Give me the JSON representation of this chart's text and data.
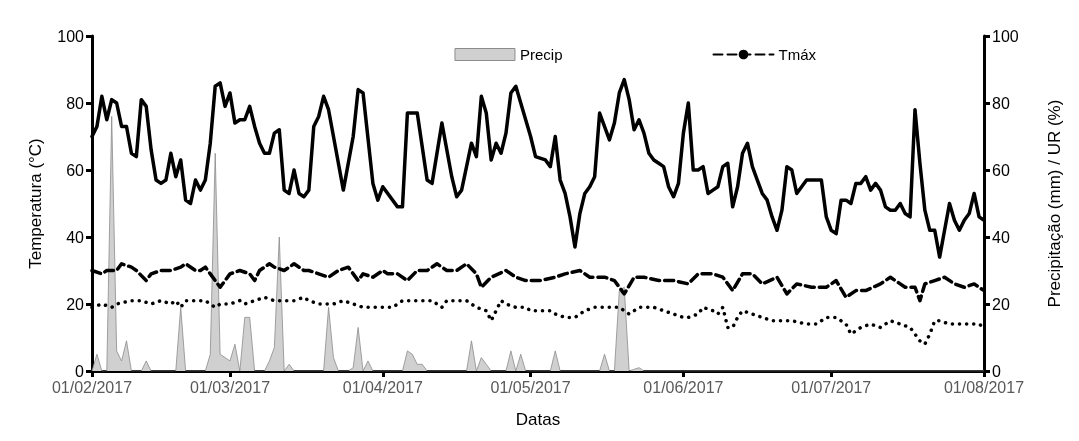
{
  "chart_data": {
    "type": "line",
    "xlabel": "Datas",
    "ylabel": "Temperatura (°C)",
    "y2label": "Precipitação (mm) / UR (%)",
    "xlim": [
      "2017-02-01",
      "2017-08-01"
    ],
    "xticks": [
      {
        "value": "2017-02-01",
        "label": "01/02/2017"
      },
      {
        "value": "2017-03-01",
        "label": "01/03/2017"
      },
      {
        "value": "2017-04-01",
        "label": "01/04/2017"
      },
      {
        "value": "2017-05-01",
        "label": "01/05/2017"
      },
      {
        "value": "2017-06-01",
        "label": "01/06/2017"
      },
      {
        "value": "2017-07-01",
        "label": "01/07/2017"
      },
      {
        "value": "2017-08-01",
        "label": "01/08/2017"
      }
    ],
    "ylim": [
      0,
      100
    ],
    "yticks": [
      0,
      20,
      40,
      60,
      80,
      100
    ],
    "y2lim": [
      0,
      100
    ],
    "y2ticks": [
      0,
      20,
      40,
      60,
      80,
      100
    ],
    "grid": false,
    "legend": "top right",
    "marker": "none",
    "series": [
      {
        "name": "Precip",
        "type": "area",
        "axis": "y2",
        "color": "#d0d0d0",
        "x": [
          "2017-02-01",
          "2017-02-02",
          "2017-02-03",
          "2017-02-04",
          "2017-02-05",
          "2017-02-06",
          "2017-02-07",
          "2017-02-08",
          "2017-02-09",
          "2017-02-11",
          "2017-02-12",
          "2017-02-13",
          "2017-02-18",
          "2017-02-19",
          "2017-02-20",
          "2017-02-24",
          "2017-02-25",
          "2017-02-26",
          "2017-02-27",
          "2017-02-28",
          "2017-03-01",
          "2017-03-02",
          "2017-03-03",
          "2017-03-04",
          "2017-03-05",
          "2017-03-06",
          "2017-03-08",
          "2017-03-09",
          "2017-03-10",
          "2017-03-11",
          "2017-03-12",
          "2017-03-13",
          "2017-03-14",
          "2017-03-20",
          "2017-03-21",
          "2017-03-22",
          "2017-03-23",
          "2017-03-25",
          "2017-03-26",
          "2017-03-27",
          "2017-03-28",
          "2017-03-29",
          "2017-03-30",
          "2017-04-05",
          "2017-04-06",
          "2017-04-07",
          "2017-04-08",
          "2017-04-09",
          "2017-04-10",
          "2017-04-18",
          "2017-04-19",
          "2017-04-20",
          "2017-04-21",
          "2017-04-22",
          "2017-04-23",
          "2017-04-26",
          "2017-04-27",
          "2017-04-28",
          "2017-04-29",
          "2017-04-30",
          "2017-05-05",
          "2017-05-06",
          "2017-05-07",
          "2017-05-15",
          "2017-05-16",
          "2017-05-17",
          "2017-05-18",
          "2017-05-19",
          "2017-05-20",
          "2017-05-21",
          "2017-05-23",
          "2017-05-24",
          "2017-08-01"
        ],
        "values": [
          0,
          5,
          0,
          0,
          76,
          6,
          3,
          9,
          0,
          0,
          3,
          0,
          0,
          19,
          0,
          0,
          5,
          65,
          5,
          4,
          3,
          8,
          0,
          16,
          16,
          0,
          0,
          3,
          7,
          40,
          0,
          2,
          0,
          0,
          19,
          4,
          0,
          0,
          1,
          13,
          0,
          3,
          0,
          0,
          6,
          5,
          2,
          2,
          0,
          0,
          9,
          0,
          4,
          2,
          0,
          0,
          6,
          0,
          5,
          0,
          0,
          6,
          0,
          0,
          5,
          0,
          0,
          24,
          25,
          0,
          1,
          0,
          0
        ]
      },
      {
        "axis": "y2",
        "color": "#000000",
        "line_style": "solid",
        "x": [
          "2017-02-01",
          "2017-02-02",
          "2017-02-03",
          "2017-02-04",
          "2017-02-05",
          "2017-02-06",
          "2017-02-07",
          "2017-02-08",
          "2017-02-09",
          "2017-02-10",
          "2017-02-11",
          "2017-02-12",
          "2017-02-13",
          "2017-02-14",
          "2017-02-15",
          "2017-02-16",
          "2017-02-17",
          "2017-02-18",
          "2017-02-19",
          "2017-02-20",
          "2017-02-21",
          "2017-02-22",
          "2017-02-23",
          "2017-02-24",
          "2017-02-25",
          "2017-02-26",
          "2017-02-27",
          "2017-02-28",
          "2017-03-01",
          "2017-03-02",
          "2017-03-03",
          "2017-03-04",
          "2017-03-05",
          "2017-03-06",
          "2017-03-07",
          "2017-03-08",
          "2017-03-09",
          "2017-03-10",
          "2017-03-11",
          "2017-03-12",
          "2017-03-13",
          "2017-03-14",
          "2017-03-15",
          "2017-03-16",
          "2017-03-17",
          "2017-03-18",
          "2017-03-19",
          "2017-03-20",
          "2017-03-21",
          "2017-03-22",
          "2017-03-24",
          "2017-03-26",
          "2017-03-27",
          "2017-03-28",
          "2017-03-30",
          "2017-03-31",
          "2017-04-01",
          "2017-04-04",
          "2017-04-05",
          "2017-04-06",
          "2017-04-08",
          "2017-04-10",
          "2017-04-11",
          "2017-04-13",
          "2017-04-15",
          "2017-04-16",
          "2017-04-17",
          "2017-04-19",
          "2017-04-20",
          "2017-04-21",
          "2017-04-22",
          "2017-04-23",
          "2017-04-24",
          "2017-04-25",
          "2017-04-26",
          "2017-04-27",
          "2017-04-28",
          "2017-04-30",
          "2017-05-01",
          "2017-05-02",
          "2017-05-04",
          "2017-05-05",
          "2017-05-06",
          "2017-05-07",
          "2017-05-08",
          "2017-05-09",
          "2017-05-10",
          "2017-05-11",
          "2017-05-12",
          "2017-05-13",
          "2017-05-14",
          "2017-05-15",
          "2017-05-17",
          "2017-05-18",
          "2017-05-19",
          "2017-05-20",
          "2017-05-21",
          "2017-05-22",
          "2017-05-23",
          "2017-05-24",
          "2017-05-25",
          "2017-05-26",
          "2017-05-27",
          "2017-05-28",
          "2017-05-29",
          "2017-05-30",
          "2017-05-31",
          "2017-06-01",
          "2017-06-02",
          "2017-06-03",
          "2017-06-04",
          "2017-06-05",
          "2017-06-06",
          "2017-06-07",
          "2017-06-08",
          "2017-06-09",
          "2017-06-10",
          "2017-06-11",
          "2017-06-12",
          "2017-06-13",
          "2017-06-14",
          "2017-06-15",
          "2017-06-16",
          "2017-06-17",
          "2017-06-18",
          "2017-06-19",
          "2017-06-20",
          "2017-06-21",
          "2017-06-22",
          "2017-06-23",
          "2017-06-24",
          "2017-06-25",
          "2017-06-26",
          "2017-06-27",
          "2017-06-29",
          "2017-06-30",
          "2017-07-01",
          "2017-07-02",
          "2017-07-03",
          "2017-07-04",
          "2017-07-05",
          "2017-07-06",
          "2017-07-07",
          "2017-07-08",
          "2017-07-09",
          "2017-07-10",
          "2017-07-11",
          "2017-07-12",
          "2017-07-13",
          "2017-07-14",
          "2017-07-15",
          "2017-07-16",
          "2017-07-17",
          "2017-07-18",
          "2017-07-19",
          "2017-07-20",
          "2017-07-21",
          "2017-07-22",
          "2017-07-23",
          "2017-07-24",
          "2017-07-25",
          "2017-07-26",
          "2017-07-27",
          "2017-07-28",
          "2017-07-29",
          "2017-07-30",
          "2017-07-31",
          "2017-08-01"
        ],
        "values": [
          70,
          73,
          82,
          75,
          81,
          80,
          73,
          73,
          65,
          64,
          81,
          79,
          66,
          57,
          56,
          57,
          65,
          58,
          63,
          51,
          50,
          57,
          54,
          57,
          68,
          85,
          86,
          79,
          83,
          74,
          75,
          75,
          79,
          73,
          68,
          65,
          65,
          71,
          72,
          54,
          53,
          60,
          53,
          52,
          54,
          73,
          76,
          82,
          78,
          70,
          54,
          70,
          84,
          83,
          56,
          51,
          55,
          49,
          49,
          77,
          77,
          57,
          56,
          74,
          58,
          52,
          54,
          68,
          64,
          82,
          77,
          63,
          68,
          65,
          71,
          83,
          85,
          75,
          70,
          64,
          63,
          61,
          70,
          57,
          53,
          46,
          37,
          47,
          53,
          55,
          58,
          77,
          69,
          74,
          83,
          87,
          81,
          72,
          75,
          71,
          65,
          63,
          62,
          61,
          55,
          52,
          56,
          71,
          80,
          60,
          60,
          61,
          53,
          54,
          55,
          61,
          62,
          49,
          55,
          65,
          68,
          61,
          57,
          53,
          51,
          46,
          42,
          48,
          61,
          60,
          53,
          55,
          57,
          57,
          57,
          46,
          42,
          41,
          51,
          51,
          50,
          56,
          56,
          58,
          54,
          56,
          54,
          49,
          48,
          48,
          50,
          47,
          46,
          78,
          62,
          48,
          42,
          42,
          34,
          42,
          50,
          45,
          42,
          45,
          47,
          53,
          46,
          45
        ]
      },
      {
        "name": "Tmáx",
        "color": "#000000",
        "line_style": "dashed",
        "x": [
          "2017-02-01",
          "2017-02-03",
          "2017-02-04",
          "2017-02-06",
          "2017-02-07",
          "2017-02-09",
          "2017-02-10",
          "2017-02-12",
          "2017-02-13",
          "2017-02-15",
          "2017-02-17",
          "2017-02-19",
          "2017-02-20",
          "2017-02-22",
          "2017-02-23",
          "2017-02-24",
          "2017-02-25",
          "2017-02-27",
          "2017-02-28",
          "2017-03-01",
          "2017-03-03",
          "2017-03-05",
          "2017-03-06",
          "2017-03-07",
          "2017-03-09",
          "2017-03-10",
          "2017-03-12",
          "2017-03-14",
          "2017-03-16",
          "2017-03-17",
          "2017-03-19",
          "2017-03-21",
          "2017-03-23",
          "2017-03-25",
          "2017-03-27",
          "2017-03-28",
          "2017-03-30",
          "2017-04-01",
          "2017-04-02",
          "2017-04-04",
          "2017-04-06",
          "2017-04-08",
          "2017-04-10",
          "2017-04-12",
          "2017-04-14",
          "2017-04-16",
          "2017-04-18",
          "2017-04-20",
          "2017-04-21",
          "2017-04-23",
          "2017-04-26",
          "2017-04-28",
          "2017-04-30",
          "2017-05-03",
          "2017-05-06",
          "2017-05-08",
          "2017-05-11",
          "2017-05-13",
          "2017-05-16",
          "2017-05-18",
          "2017-05-20",
          "2017-05-22",
          "2017-05-24",
          "2017-05-27",
          "2017-05-30",
          "2017-06-02",
          "2017-06-04",
          "2017-06-07",
          "2017-06-09",
          "2017-06-11",
          "2017-06-13",
          "2017-06-15",
          "2017-06-17",
          "2017-06-20",
          "2017-06-22",
          "2017-06-24",
          "2017-06-27",
          "2017-06-30",
          "2017-07-02",
          "2017-07-04",
          "2017-07-06",
          "2017-07-08",
          "2017-07-11",
          "2017-07-13",
          "2017-07-16",
          "2017-07-18",
          "2017-07-19",
          "2017-07-20",
          "2017-07-22",
          "2017-07-24",
          "2017-07-26",
          "2017-07-28",
          "2017-07-30",
          "2017-08-01"
        ],
        "values": [
          30,
          29,
          30,
          30,
          32,
          31,
          30,
          27,
          29,
          30,
          30,
          31,
          32,
          30,
          30,
          31,
          29,
          25,
          27,
          29,
          30,
          29,
          27,
          30,
          32,
          31,
          30,
          32,
          30,
          30,
          29,
          28,
          30,
          31,
          27,
          29,
          28,
          30,
          29,
          29,
          27,
          30,
          30,
          32,
          30,
          30,
          32,
          29,
          25,
          28,
          30,
          28,
          27,
          27,
          28,
          29,
          30,
          28,
          28,
          27,
          23,
          28,
          28,
          27,
          27,
          26,
          29,
          29,
          28,
          24,
          29,
          29,
          26,
          28,
          23,
          26,
          25,
          25,
          27,
          22,
          24,
          24,
          26,
          28,
          25,
          25,
          21,
          26,
          27,
          28,
          26,
          25,
          26,
          24
        ]
      },
      {
        "color": "#000000",
        "line_style": "dotted",
        "x": [
          "2017-02-01",
          "2017-02-03",
          "2017-02-05",
          "2017-02-06",
          "2017-02-09",
          "2017-02-11",
          "2017-02-13",
          "2017-02-15",
          "2017-02-17",
          "2017-02-18",
          "2017-02-19",
          "2017-02-20",
          "2017-02-22",
          "2017-02-24",
          "2017-02-26",
          "2017-02-27",
          "2017-03-01",
          "2017-03-03",
          "2017-03-04",
          "2017-03-06",
          "2017-03-08",
          "2017-03-10",
          "2017-03-12",
          "2017-03-14",
          "2017-03-16",
          "2017-03-17",
          "2017-03-19",
          "2017-03-21",
          "2017-03-22",
          "2017-03-24",
          "2017-03-26",
          "2017-03-28",
          "2017-03-30",
          "2017-04-01",
          "2017-04-03",
          "2017-04-05",
          "2017-04-07",
          "2017-04-09",
          "2017-04-11",
          "2017-04-13",
          "2017-04-14",
          "2017-04-16",
          "2017-04-18",
          "2017-04-20",
          "2017-04-22",
          "2017-04-23",
          "2017-04-24",
          "2017-04-25",
          "2017-04-26",
          "2017-04-28",
          "2017-04-30",
          "2017-05-01",
          "2017-05-03",
          "2017-05-05",
          "2017-05-06",
          "2017-05-08",
          "2017-05-10",
          "2017-05-12",
          "2017-05-14",
          "2017-05-16",
          "2017-05-17",
          "2017-05-19",
          "2017-05-21",
          "2017-05-23",
          "2017-05-24",
          "2017-05-26",
          "2017-05-28",
          "2017-05-30",
          "2017-06-01",
          "2017-06-02",
          "2017-06-04",
          "2017-06-05",
          "2017-06-07",
          "2017-06-08",
          "2017-06-09",
          "2017-06-10",
          "2017-06-11",
          "2017-06-12",
          "2017-06-13",
          "2017-06-15",
          "2017-06-17",
          "2017-06-19",
          "2017-06-21",
          "2017-06-23",
          "2017-06-26",
          "2017-06-28",
          "2017-06-30",
          "2017-07-02",
          "2017-07-04",
          "2017-07-05",
          "2017-07-06",
          "2017-07-07",
          "2017-07-09",
          "2017-07-11",
          "2017-07-13",
          "2017-07-15",
          "2017-07-17",
          "2017-07-18",
          "2017-07-19",
          "2017-07-20",
          "2017-07-21",
          "2017-07-22",
          "2017-07-23",
          "2017-07-25",
          "2017-07-27",
          "2017-07-29",
          "2017-07-31",
          "2017-08-01"
        ],
        "values": [
          19,
          20,
          19,
          20,
          21,
          21,
          20,
          21,
          20,
          21,
          19,
          21,
          21,
          21,
          19,
          20,
          20,
          21,
          20,
          21,
          22,
          21,
          21,
          21,
          22,
          21,
          20,
          20,
          20,
          21,
          20,
          19,
          19,
          19,
          19,
          21,
          21,
          21,
          21,
          19,
          21,
          21,
          21,
          19,
          18,
          15,
          18,
          21,
          20,
          19,
          19,
          18,
          18,
          18,
          17,
          16,
          16,
          18,
          19,
          19,
          19,
          19,
          17,
          19,
          19,
          19,
          18,
          17,
          16,
          16,
          17,
          19,
          18,
          17,
          19,
          13,
          13,
          16,
          18,
          17,
          16,
          15,
          15,
          15,
          14,
          14,
          16,
          16,
          14,
          11,
          12,
          13,
          14,
          13,
          15,
          14,
          13,
          11,
          9,
          8,
          11,
          15,
          15,
          14,
          14,
          14,
          14,
          13
        ]
      }
    ]
  }
}
